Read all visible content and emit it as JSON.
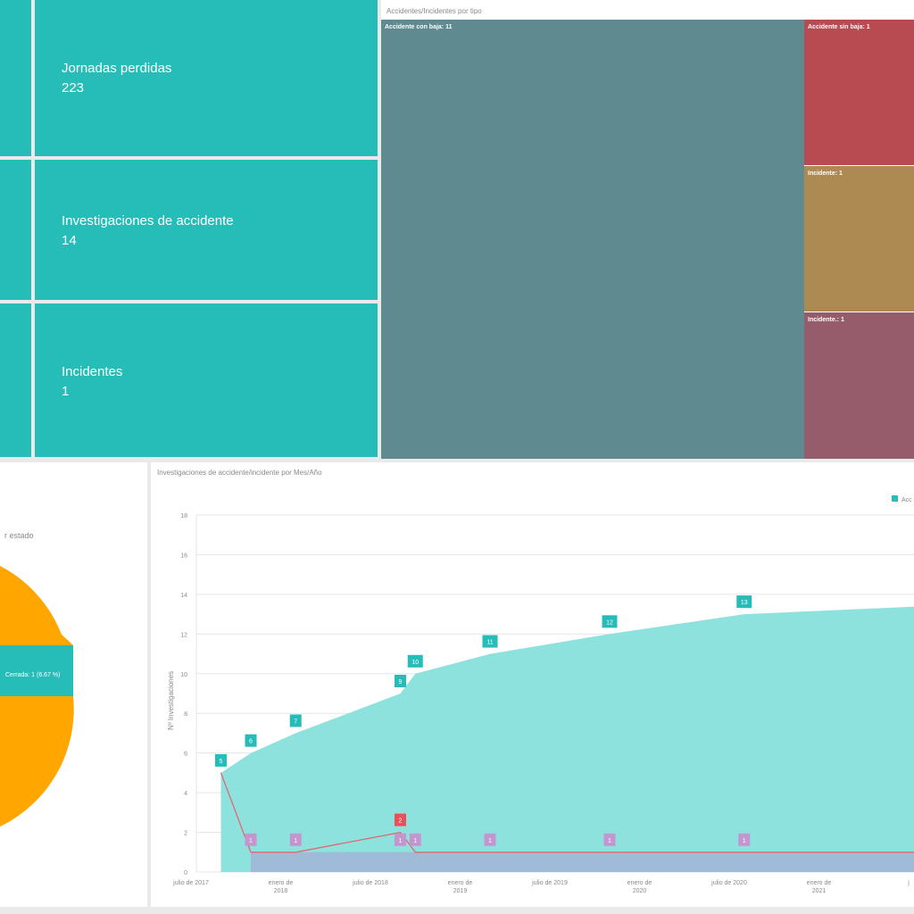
{
  "kpis": [
    {
      "title": "Jornadas perdidas",
      "value": "223"
    },
    {
      "title": "Investigaciones de accidente",
      "value": "14"
    },
    {
      "title": "Incidentes",
      "value": "1"
    }
  ],
  "treemap": {
    "title": "Accidentes/Incidentes por tipo",
    "tiles": [
      {
        "label": "Accidente con baja: 11",
        "value": 11,
        "color": "#5e8a90"
      },
      {
        "label": "Accidente sin baja: 1",
        "value": 1,
        "color": "#b84a52"
      },
      {
        "label": "Incidente: 1",
        "value": 1,
        "color": "#ad8a52"
      },
      {
        "label": "Incidente.: 1",
        "value": 1,
        "color": "#965c6b"
      }
    ]
  },
  "pie": {
    "title_fragment": "r estado",
    "slice_label": "Cerrada: 1 (6.67 %)",
    "colors": {
      "main": "#ffa600",
      "closed": "#26bdb9"
    }
  },
  "chart_data": {
    "type": "area",
    "title": "Investigaciones de accidente/incidente por Mes/Año",
    "ylabel": "Nº Investigaciones",
    "ylim": [
      0,
      18
    ],
    "yticks": [
      "0",
      "2",
      "4",
      "6",
      "8",
      "10",
      "12",
      "14",
      "16",
      "18"
    ],
    "xticks": [
      {
        "date": "2017-07",
        "line1": "julio de 2017",
        "line2": ""
      },
      {
        "date": "2018-01",
        "line1": "enero de",
        "line2": "2018"
      },
      {
        "date": "2018-07",
        "line1": "julio de 2018",
        "line2": ""
      },
      {
        "date": "2019-01",
        "line1": "enero de",
        "line2": "2019"
      },
      {
        "date": "2019-07",
        "line1": "julio de 2019",
        "line2": ""
      },
      {
        "date": "2020-01",
        "line1": "enero de",
        "line2": "2020"
      },
      {
        "date": "2020-07",
        "line1": "julio de 2020",
        "line2": ""
      },
      {
        "date": "2021-01",
        "line1": "enero de",
        "line2": "2021"
      },
      {
        "date": "2021-07",
        "line1": "j",
        "line2": ""
      }
    ],
    "legend_fragment": "Acc",
    "series": [
      {
        "name": "Acc",
        "color": "#8ee2dd",
        "label_color": "#26bdb9",
        "x": [
          "2017-09",
          "2017-11",
          "2018-02",
          "2018-09",
          "2018-10",
          "2019-03",
          "2019-11",
          "2020-08",
          "2021-08"
        ],
        "values": [
          5,
          6,
          7,
          9,
          10,
          11,
          12,
          13,
          13.4
        ],
        "labels": [
          "5",
          "6",
          "7",
          "9",
          "10",
          "11",
          "12",
          "13",
          ""
        ]
      },
      {
        "color": "#e46670",
        "label_color": "#e8515a",
        "x": [
          "2017-09",
          "2017-11",
          "2018-02",
          "2018-09",
          "2018-10",
          "2021-08"
        ],
        "values": [
          5,
          1,
          1,
          2,
          1,
          1
        ],
        "labels": [
          "",
          "",
          "",
          "2",
          "",
          ""
        ]
      },
      {
        "color": "#a3b4d6",
        "label_color": "#c496d0",
        "x": [
          "2017-11",
          "2018-02",
          "2018-09",
          "2018-10",
          "2019-03",
          "2019-11",
          "2020-08",
          "2021-08"
        ],
        "values": [
          1,
          1,
          1,
          1,
          1,
          1,
          1,
          1
        ],
        "labels": [
          "1",
          "1",
          "1",
          "1",
          "1",
          "1",
          "1",
          ""
        ]
      }
    ]
  }
}
